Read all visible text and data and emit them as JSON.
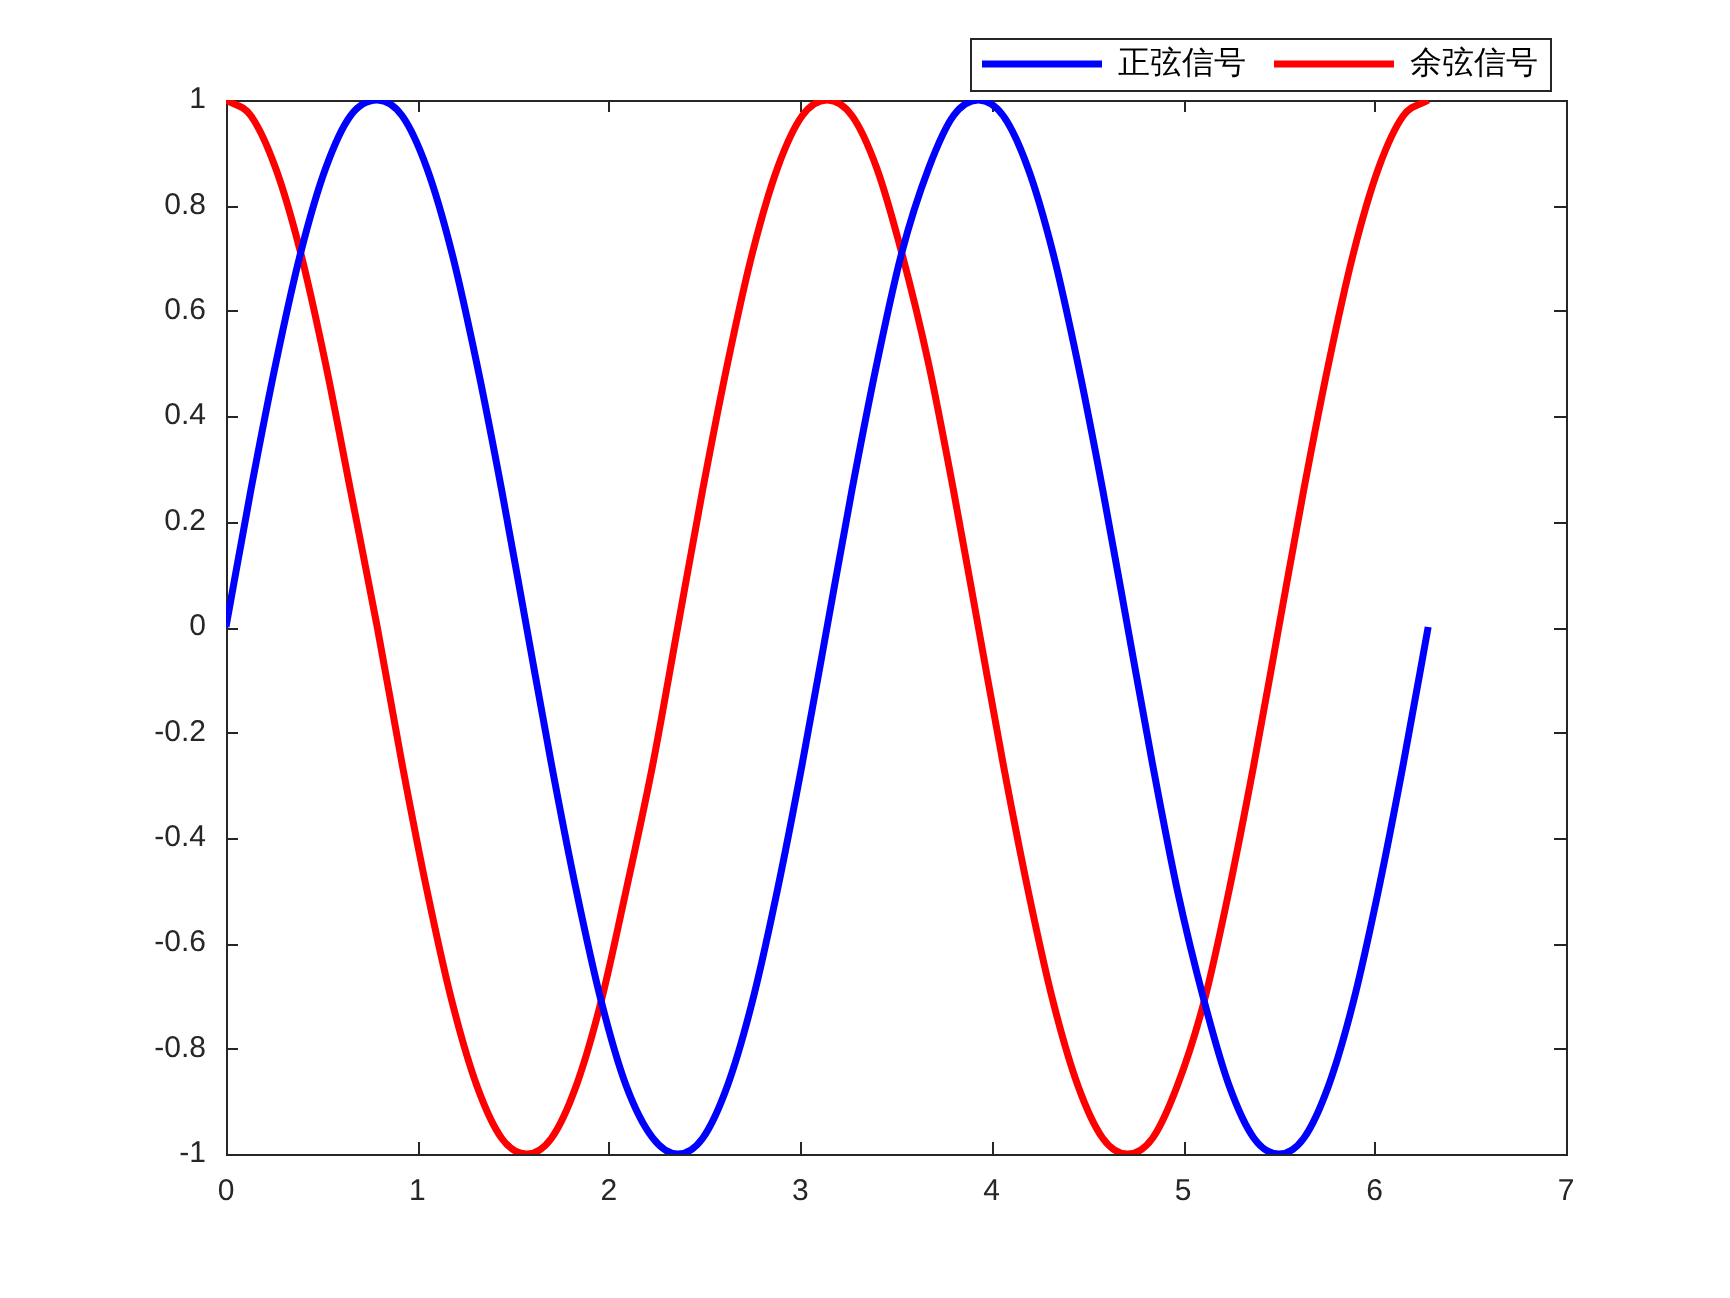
{
  "chart_data": {
    "type": "line",
    "x": [
      0,
      0.13,
      0.26,
      0.39,
      0.52,
      0.65,
      0.79,
      0.92,
      1.05,
      1.18,
      1.31,
      1.44,
      1.57,
      1.7,
      1.83,
      1.96,
      2.09,
      2.23,
      2.36,
      2.49,
      2.62,
      2.75,
      2.88,
      3.01,
      3.14,
      3.27,
      3.4,
      3.53,
      3.67,
      3.8,
      3.93,
      4.06,
      4.19,
      4.32,
      4.45,
      4.58,
      4.71,
      4.84,
      4.97,
      5.11,
      5.24,
      5.37,
      5.5,
      5.63,
      5.76,
      5.89,
      6.02,
      6.15,
      6.28
    ],
    "series": [
      {
        "name": "正弦信号",
        "color": "#0000ff",
        "values": [
          0,
          0.26,
          0.5,
          0.71,
          0.87,
          0.97,
          1,
          0.97,
          0.87,
          0.71,
          0.5,
          0.26,
          0,
          -0.26,
          -0.5,
          -0.71,
          -0.87,
          -0.97,
          -1,
          -0.97,
          -0.87,
          -0.71,
          -0.5,
          -0.26,
          0,
          0.26,
          0.5,
          0.71,
          0.87,
          0.97,
          1,
          0.97,
          0.87,
          0.71,
          0.5,
          0.26,
          0,
          -0.26,
          -0.5,
          -0.71,
          -0.87,
          -0.97,
          -1,
          -0.97,
          -0.87,
          -0.71,
          -0.5,
          -0.26,
          0
        ]
      },
      {
        "name": "余弦信号",
        "color": "#ff0000",
        "values": [
          1,
          0.97,
          0.87,
          0.71,
          0.5,
          0.26,
          0,
          -0.26,
          -0.5,
          -0.71,
          -0.87,
          -0.97,
          -1,
          -0.97,
          -0.87,
          -0.71,
          -0.5,
          -0.26,
          0,
          0.26,
          0.5,
          0.71,
          0.87,
          0.97,
          1,
          0.97,
          0.87,
          0.71,
          0.5,
          0.26,
          0,
          -0.26,
          -0.5,
          -0.71,
          -0.87,
          -0.97,
          -1,
          -0.97,
          -0.87,
          -0.71,
          -0.5,
          -0.26,
          0,
          0.26,
          0.5,
          0.71,
          0.87,
          0.97,
          1
        ]
      }
    ],
    "xlim": [
      0,
      7
    ],
    "xticks": [
      0,
      1,
      2,
      3,
      4,
      5,
      6,
      7
    ],
    "ylim": [
      -1,
      1
    ],
    "yticks": [
      -1,
      -0.8,
      -0.6,
      -0.4,
      -0.2,
      0,
      0.2,
      0.4,
      0.6,
      0.8,
      1
    ],
    "legend": "top right",
    "marker": "none",
    "line_style": "solid"
  }
}
